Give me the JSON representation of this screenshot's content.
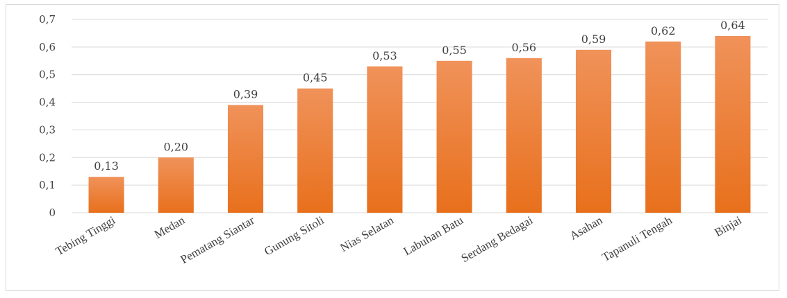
{
  "chart_data": {
    "type": "bar",
    "title": "",
    "xlabel": "",
    "ylabel": "",
    "categories": [
      "Tebing Tinggi",
      "Medan",
      "Pematang Siantar",
      "Gunung Sitoli",
      "Nias Selatan",
      "Labuhan Batu",
      "Serdang Bedagai",
      "Asahan",
      "Tapanuli Tengah",
      "Binjai"
    ],
    "values": [
      0.13,
      0.2,
      0.39,
      0.45,
      0.53,
      0.55,
      0.56,
      0.59,
      0.62,
      0.64
    ],
    "data_labels": [
      "0,13",
      "0,20",
      "0,39",
      "0,45",
      "0,53",
      "0,55",
      "0,56",
      "0,59",
      "0,62",
      "0,64"
    ],
    "y_ticks": [
      0,
      0.1,
      0.2,
      0.3,
      0.4,
      0.5,
      0.6,
      0.7
    ],
    "y_tick_labels": [
      "0",
      "0,1",
      "0,2",
      "0,3",
      "0,4",
      "0,5",
      "0,6",
      "0,7"
    ],
    "ylim": [
      0,
      0.7
    ],
    "grid": true,
    "legend": false,
    "bar_color_top": "#f0925a",
    "bar_color_bottom": "#e8701c",
    "grid_color": "#d9d9d9"
  }
}
